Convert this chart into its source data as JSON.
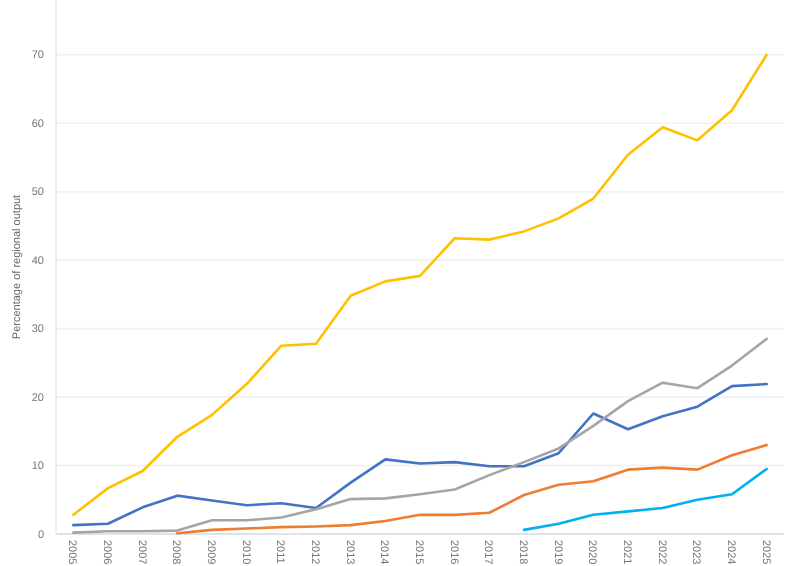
{
  "chart_data": {
    "type": "line",
    "ylabel": "Percentage of regional output",
    "categories": [
      "2005",
      "2006",
      "2007",
      "2008",
      "2009",
      "2010",
      "2011",
      "2012",
      "2013",
      "2014",
      "2015",
      "2016",
      "2017",
      "2018",
      "2019",
      "2020",
      "2021",
      "2022",
      "2023",
      "2024",
      "2025"
    ],
    "series": [
      {
        "color": "#ffc000",
        "values": [
          2.8,
          6.7,
          9.2,
          14.2,
          17.4,
          21.9,
          27.5,
          27.8,
          34.8,
          36.9,
          37.7,
          43.2,
          43.0,
          44.2,
          46.1,
          49.0,
          55.4,
          59.4,
          57.5,
          61.9,
          70.0
        ]
      },
      {
        "color": "#4472c4",
        "values": [
          1.3,
          1.5,
          3.9,
          5.6,
          4.9,
          4.2,
          4.5,
          3.8,
          7.5,
          10.9,
          10.3,
          10.5,
          9.9,
          9.9,
          11.8,
          17.6,
          15.3,
          17.2,
          18.6,
          21.6,
          21.9
        ]
      },
      {
        "color": "#a5a5a5",
        "values": [
          0.2,
          0.4,
          0.4,
          0.5,
          2.0,
          2.0,
          2.4,
          3.6,
          5.1,
          5.2,
          5.8,
          6.5,
          8.6,
          10.5,
          12.5,
          15.8,
          19.4,
          22.1,
          21.3,
          24.6,
          28.5
        ]
      },
      {
        "color": "#ed7d31",
        "values": [
          null,
          null,
          null,
          0.1,
          0.6,
          0.8,
          1.0,
          1.1,
          1.3,
          1.9,
          2.8,
          2.8,
          3.1,
          5.7,
          7.2,
          7.7,
          9.4,
          9.7,
          9.4,
          11.5,
          13.0
        ]
      },
      {
        "color": "#00b0f0",
        "values": [
          null,
          null,
          null,
          null,
          null,
          null,
          null,
          null,
          null,
          null,
          null,
          null,
          null,
          0.6,
          1.5,
          2.8,
          3.3,
          3.8,
          5.0,
          5.8,
          9.5
        ]
      }
    ],
    "ylim": [
      0,
      78
    ],
    "yticks": [
      0,
      10,
      20,
      30,
      40,
      50,
      60,
      70
    ],
    "grid": "y",
    "marker": "none",
    "line_style": "solid"
  }
}
